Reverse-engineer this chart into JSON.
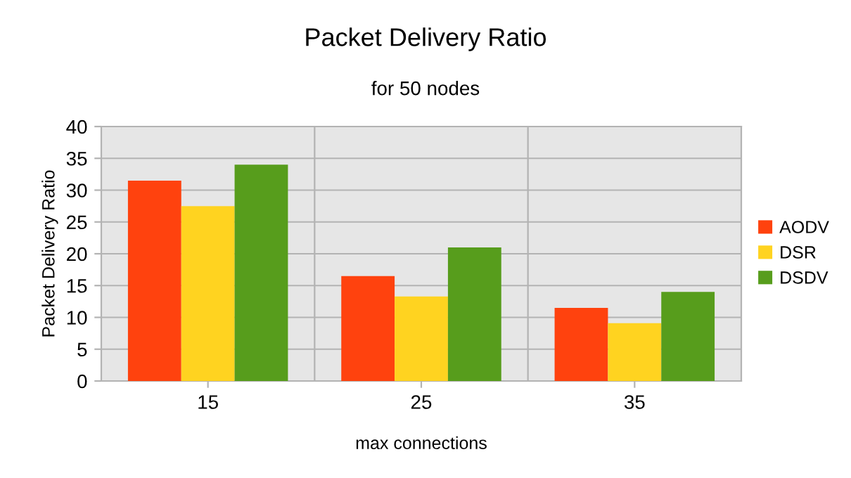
{
  "chart_data": {
    "type": "bar",
    "title": "Packet Delivery Ratio",
    "subtitle": "for 50 nodes",
    "xlabel": "max connections",
    "ylabel": "Packet Delivery Ratio",
    "categories": [
      "15",
      "25",
      "35"
    ],
    "series": [
      {
        "name": "AODV",
        "color": "#ff420e",
        "values": [
          31.5,
          16.5,
          11.5
        ]
      },
      {
        "name": "DSR",
        "color": "#ffd320",
        "values": [
          27.5,
          13.3,
          9.1
        ]
      },
      {
        "name": "DSDV",
        "color": "#579d1c",
        "values": [
          34,
          21,
          14
        ]
      }
    ],
    "ylim": [
      0,
      40
    ],
    "yticks": [
      0,
      5,
      10,
      15,
      20,
      25,
      30,
      35,
      40
    ],
    "grid": true,
    "legend": "right"
  }
}
